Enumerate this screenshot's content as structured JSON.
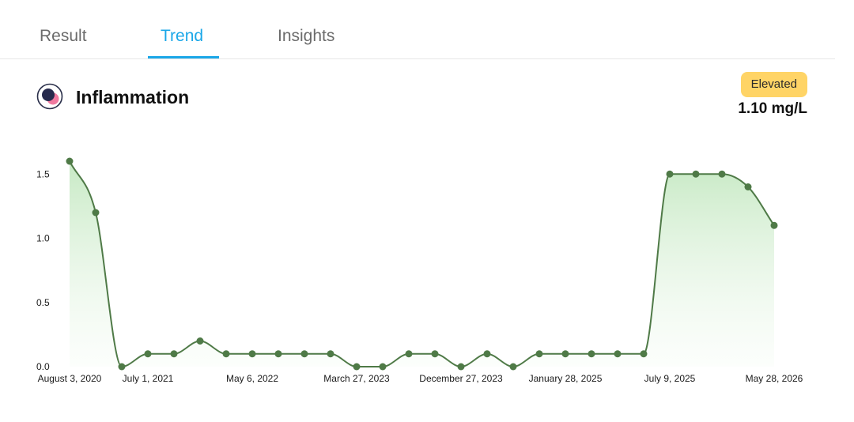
{
  "tabs": [
    {
      "label": "Result",
      "active": false
    },
    {
      "label": "Trend",
      "active": true
    },
    {
      "label": "Insights",
      "active": false
    }
  ],
  "header": {
    "icon": "inflammation-icon",
    "title": "Inflammation",
    "status_badge": "Elevated",
    "latest_value": "1.10 mg/L"
  },
  "colors": {
    "accent": "#1aa7e8",
    "badge": "#ffd466",
    "line": "#4f7a47",
    "fill": "#cdeccb"
  },
  "chart_data": {
    "type": "area",
    "title": "",
    "xlabel": "",
    "ylabel": "",
    "ylim": [
      0,
      1.6
    ],
    "yticks": [
      "0.0",
      "0.5",
      "1.0",
      "1.5"
    ],
    "xtick_labels": [
      "August 3, 2020",
      "July 1, 2021",
      "May 6, 2022",
      "March 27, 2023",
      "December 27, 2023",
      "January 28, 2025",
      "July 9, 2025",
      "May 28, 2026"
    ],
    "values": [
      1.6,
      1.2,
      0.0,
      0.1,
      0.1,
      0.2,
      0.1,
      0.1,
      0.1,
      0.1,
      0.1,
      0.0,
      0.0,
      0.1,
      0.1,
      0.0,
      0.1,
      0.0,
      0.1,
      0.1,
      0.1,
      0.1,
      0.1,
      1.5,
      1.5,
      1.5,
      1.4,
      1.1
    ],
    "grid": false,
    "legend": "none"
  }
}
